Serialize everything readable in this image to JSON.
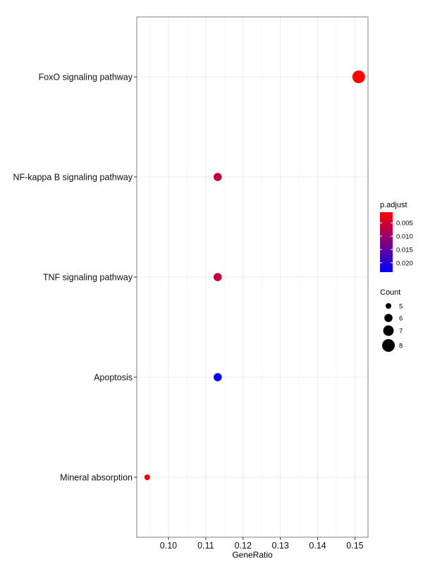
{
  "chart_data": {
    "type": "scatter",
    "xlabel": "GeneRatio",
    "ylabel": "",
    "xlim": [
      0.0915,
      0.1535
    ],
    "x_ticks": [
      "0.10",
      "0.11",
      "0.12",
      "0.13",
      "0.14",
      "0.15"
    ],
    "x_tick_values": [
      0.1,
      0.11,
      0.12,
      0.13,
      0.14,
      0.15
    ],
    "categories": [
      "FoxO signaling pathway",
      "NF-kappa B signaling pathway",
      "TNF signaling pathway",
      "Apoptosis",
      "Mineral absorption"
    ],
    "points": [
      {
        "category": "FoxO signaling pathway",
        "x": 0.151,
        "count": 8,
        "p_adjust": 0.001
      },
      {
        "category": "NF-kappa B signaling pathway",
        "x": 0.1132,
        "count": 6,
        "p_adjust": 0.006
      },
      {
        "category": "TNF signaling pathway",
        "x": 0.1132,
        "count": 6,
        "p_adjust": 0.006
      },
      {
        "category": "Apoptosis",
        "x": 0.1132,
        "count": 6,
        "p_adjust": 0.023
      },
      {
        "category": "Mineral absorption",
        "x": 0.0943,
        "count": 5,
        "p_adjust": 0.002
      }
    ],
    "grid": true,
    "legend_placement": "right",
    "color_legend": {
      "title": "p.adjust",
      "ticks": [
        "0.005",
        "0.010",
        "0.015",
        "0.020"
      ],
      "tick_values": [
        0.005,
        0.01,
        0.015,
        0.02
      ],
      "range": [
        0.001,
        0.0235
      ],
      "low_color": "#ff0000",
      "high_color": "#0000ff"
    },
    "size_legend": {
      "title": "Count",
      "labels": [
        "5",
        "6",
        "7",
        "8"
      ],
      "values": [
        5,
        6,
        7,
        8
      ]
    }
  }
}
